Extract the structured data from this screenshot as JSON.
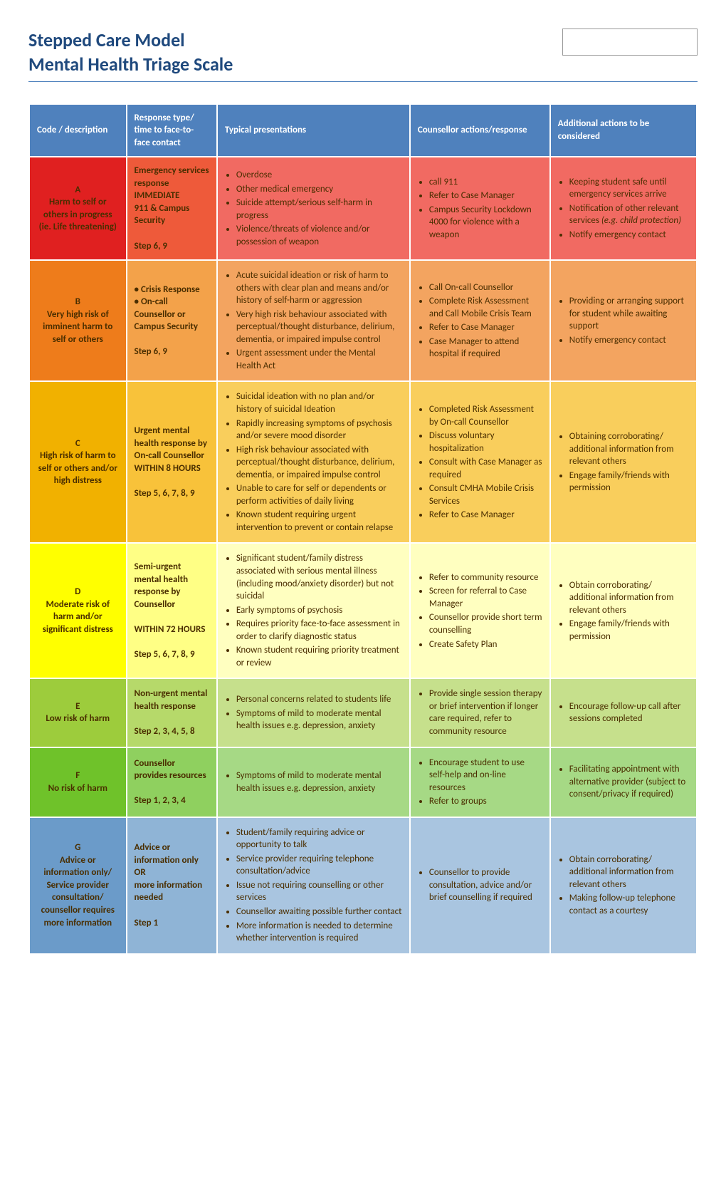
{
  "title_line1": "Stepped Care Model",
  "title_line2": "Mental Health Triage Scale",
  "headers": {
    "c1": "Code / description",
    "c2": "Response type/ time to face-to-face contact",
    "c3": "Typical presentations",
    "c4": "Counsellor actions/response",
    "c5": "Additional actions to be considered"
  },
  "rows": [
    {
      "id": "A",
      "cls": "rA",
      "code_letter": "A",
      "code_desc": "Harm to self or others in progress (ie. Life threatening)",
      "response_lines": [
        "Emergency services response",
        "IMMEDIATE",
        "911 & Campus Security",
        "",
        "Step 6, 9"
      ],
      "presentations": [
        "Overdose",
        "Other medical emergency",
        "Suicide attempt/serious self-harm in progress",
        "Violence/threats of violence and/or possession of weapon"
      ],
      "counsellor": [
        "call 911",
        "Refer to Case Manager",
        "Campus Security Lockdown 4000 for violence with a weapon"
      ],
      "additional": [
        "Keeping student safe until emergency services arrive",
        "Notification of other relevant services <span class=\"italic\">(e.g. child protection)</span>",
        "Notify emergency contact"
      ]
    },
    {
      "id": "B",
      "cls": "rB",
      "code_letter": "B",
      "code_desc": "Very high risk of imminent harm to self or others",
      "response_lines": [
        "• Crisis Response",
        "• On-call Counsellor or Campus Security",
        "",
        "Step 6, 9"
      ],
      "presentations": [
        "Acute suicidal ideation or risk of harm to others with clear plan and means and/or history of self-harm or aggression",
        "Very high risk behaviour associated with perceptual/thought disturbance, delirium, dementia, or impaired impulse control",
        "Urgent assessment under the Mental Health Act"
      ],
      "counsellor": [
        "Call On-call Counsellor",
        "Complete Risk Assessment and Call Mobile Crisis Team",
        "Refer to Case Manager",
        "Case Manager to attend hospital if required"
      ],
      "additional": [
        "Providing or arranging support for student while awaiting support",
        "Notify emergency contact"
      ]
    },
    {
      "id": "C",
      "cls": "rC",
      "code_letter": "C",
      "code_desc": "High risk of harm to self or others and/or high distress",
      "response_lines": [
        "Urgent mental health response by On-call Counsellor",
        "WITHIN 8 HOURS",
        "",
        "Step 5, 6, 7, 8, 9"
      ],
      "presentations": [
        "Suicidal ideation with no plan and/or history of suicidal Ideation",
        "Rapidly increasing symptoms of psychosis and/or severe mood disorder",
        "High risk behaviour associated with perceptual/thought disturbance, delirium, dementia, or impaired impulse control",
        "Unable to care for self or dependents or perform activities of daily living",
        "Known student requiring urgent intervention to prevent or contain relapse"
      ],
      "counsellor": [
        "Completed Risk Assessment by On-call Counsellor",
        "Discuss voluntary hospitalization",
        "Consult with Case Manager as required",
        "Consult CMHA Mobile Crisis Services",
        "Refer to Case Manager"
      ],
      "additional": [
        "Obtaining corroborating/ additional information from relevant others",
        "Engage family/friends with permission"
      ]
    },
    {
      "id": "D",
      "cls": "rD",
      "code_letter": "D",
      "code_desc": "Moderate risk of harm and/or significant distress",
      "response_lines": [
        "Semi-urgent mental health response by Counsellor",
        "",
        "WITHIN 72 HOURS",
        "",
        "Step 5, 6, 7, 8, 9"
      ],
      "presentations": [
        "Significant student/family distress associated with serious mental illness (including mood/anxiety disorder) but not suicidal",
        "Early symptoms of psychosis",
        "Requires priority face-to-face assessment in order to clarify diagnostic status",
        "Known student requiring priority treatment or review"
      ],
      "counsellor": [
        "Refer to community resource",
        "Screen for referral to Case Manager",
        "Counsellor provide short term counselling",
        "Create Safety Plan"
      ],
      "additional": [
        "Obtain corroborating/ additional information from relevant others",
        "Engage family/friends with permission"
      ]
    },
    {
      "id": "E",
      "cls": "rE",
      "code_letter": "E",
      "code_desc": "Low risk of harm",
      "response_lines": [
        "Non-urgent mental health response",
        "",
        "Step 2, 3, 4, 5, 8"
      ],
      "presentations": [
        "Personal concerns related to students life",
        "Symptoms of mild to moderate mental health issues e.g. depression, anxiety"
      ],
      "counsellor": [
        "Provide single session therapy or brief intervention if longer care required, refer to community resource"
      ],
      "additional": [
        "Encourage follow-up call after sessions completed"
      ]
    },
    {
      "id": "F",
      "cls": "rF",
      "code_letter": "F",
      "code_desc": "No risk of harm",
      "response_lines": [
        "Counsellor provides resources",
        "",
        "Step 1, 2, 3, 4"
      ],
      "presentations": [
        "Symptoms of mild to moderate mental health issues e.g. depression, anxiety"
      ],
      "counsellor": [
        "Encourage student to use self-help and on-line resources",
        "Refer to groups"
      ],
      "additional": [
        "Facilitating appointment with alternative provider (subject to consent/privacy if required)"
      ]
    },
    {
      "id": "G",
      "cls": "rG",
      "code_letter": "G",
      "code_desc": "Advice or information only/ Service provider consultation/ counsellor requires more information",
      "response_lines": [
        "Advice or information only",
        "OR",
        "more information needed",
        "",
        "Step 1"
      ],
      "presentations": [
        "Student/family requiring advice or opportunity to talk",
        "Service provider requiring telephone consultation/advice",
        "Issue not requiring counselling or other services",
        "Counsellor awaiting possible further contact",
        "More information is needed to determine whether intervention is required"
      ],
      "counsellor": [
        "Counsellor to provide consultation, advice and/or brief counselling if required"
      ],
      "additional": [
        "Obtain corroborating/ additional information from relevant others",
        "Making follow-up telephone contact as a courtesy"
      ]
    }
  ]
}
